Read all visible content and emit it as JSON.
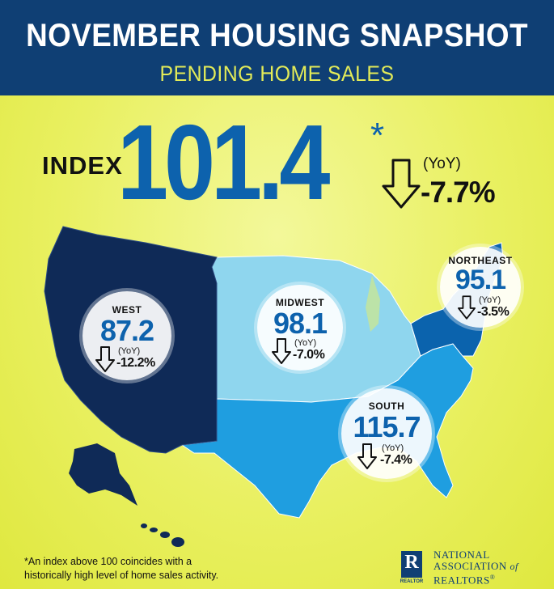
{
  "header": {
    "title": "NOVEMBER HOUSING SNAPSHOT",
    "subtitle": "PENDING HOME SALES"
  },
  "index": {
    "label": "INDEX",
    "value": "101.4",
    "marker": "*",
    "yoy_label": "(YoY)",
    "yoy_value": "-7.7%",
    "direction": "down-arrow-icon"
  },
  "regions": [
    {
      "name": "WEST",
      "value": "87.2",
      "yoy_label": "(YoY)",
      "yoy_value": "-12.2%",
      "direction": "down-arrow-icon",
      "color": "#0f2a57"
    },
    {
      "name": "MIDWEST",
      "value": "98.1",
      "yoy_label": "(YoY)",
      "yoy_value": "-7.0%",
      "direction": "down-arrow-icon",
      "color": "#8fd6ee"
    },
    {
      "name": "NORTHEAST",
      "value": "95.1",
      "yoy_label": "(YoY)",
      "yoy_value": "-3.5%",
      "direction": "down-arrow-icon",
      "color": "#0b63ad"
    },
    {
      "name": "SOUTH",
      "value": "115.7",
      "yoy_label": "(YoY)",
      "yoy_value": "-7.4%",
      "direction": "down-arrow-icon",
      "color": "#1f9ee0"
    }
  ],
  "footnote": {
    "line1": "*An index above 100 coincides with a",
    "line2": "historically high level of home sales activity."
  },
  "logo": {
    "mark": "R",
    "mark_caption": "REALTOR",
    "org_line1": "NATIONAL",
    "org_line2": "ASSOCIATION",
    "org_of": "of",
    "org_line3": "REALTORS",
    "org_reg": "®"
  },
  "colors": {
    "header_bg": "#0f3f74",
    "accent_blue": "#0d62ad",
    "background_yellow": "#e9f061"
  }
}
